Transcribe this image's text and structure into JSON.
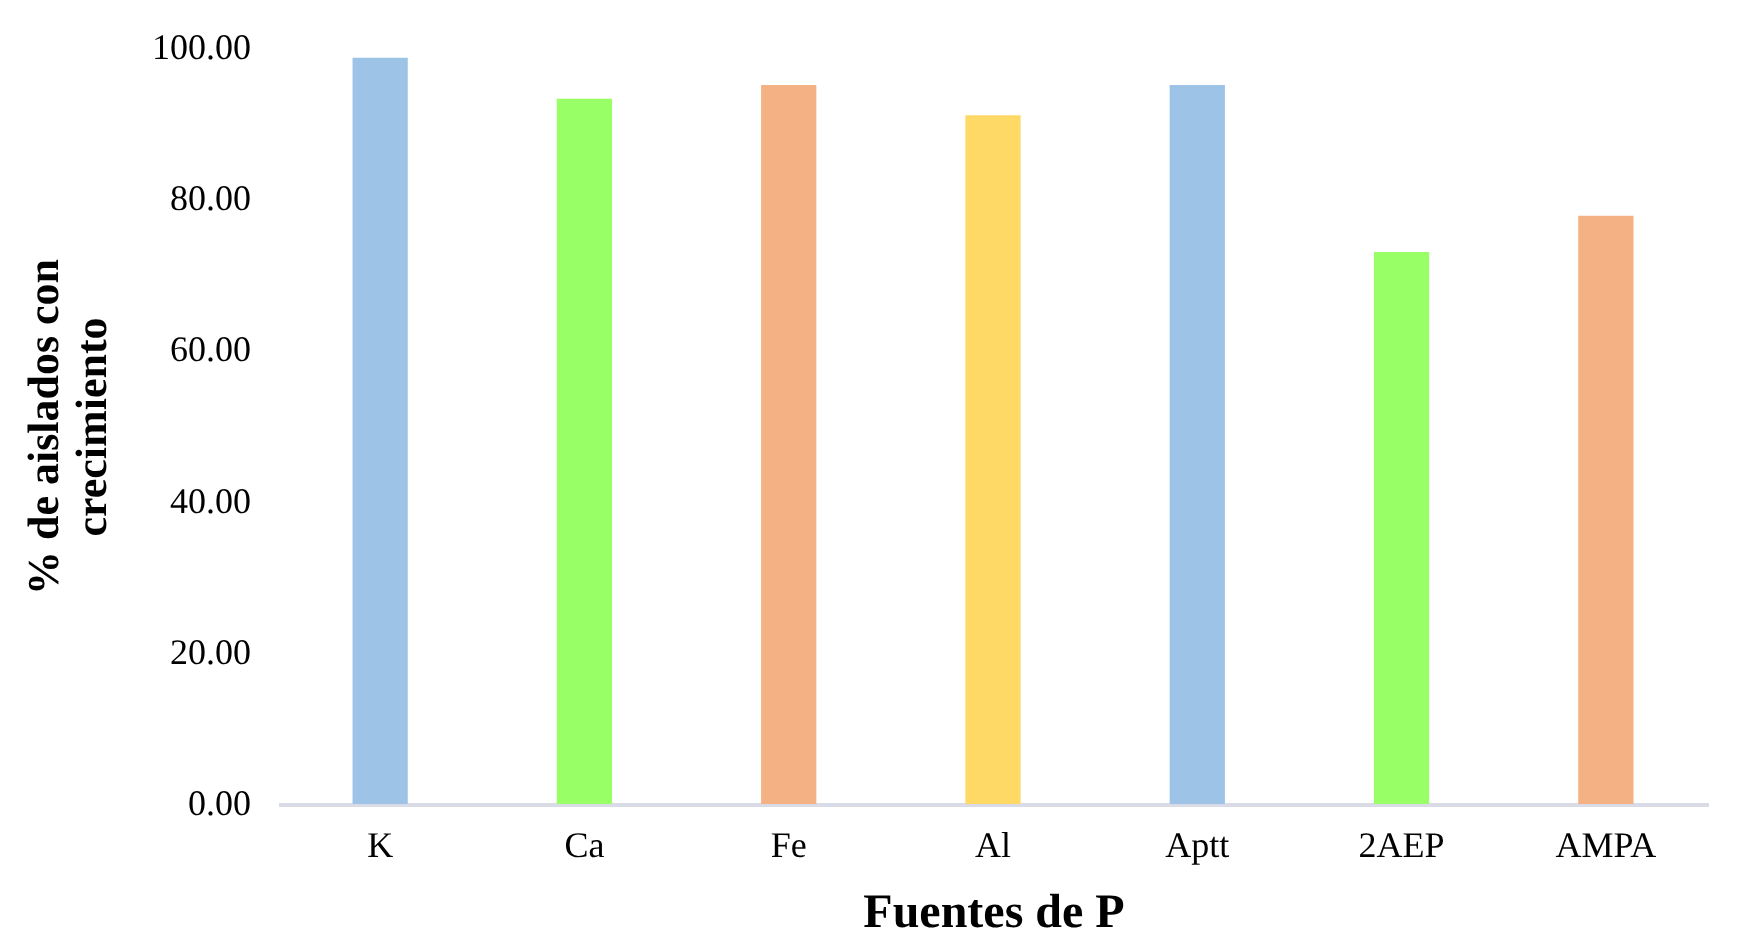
{
  "chart_data": {
    "type": "bar",
    "xlabel": "Fuentes de P",
    "ylabel": "%  de aislados con crecimiento",
    "categories": [
      "K",
      "Ca",
      "Fe",
      "Al",
      "Aptt",
      "2AEP",
      "AMPA"
    ],
    "values": [
      98.7,
      93.3,
      95.1,
      91.1,
      95.1,
      73.0,
      77.8
    ],
    "colors": [
      "#9dc3e6",
      "#99ff66",
      "#f4b183",
      "#ffd966",
      "#9dc3e6",
      "#99ff66",
      "#f4b183"
    ],
    "ylim": [
      0,
      100
    ],
    "yticks": [
      {
        "value": 0,
        "label": "0.00"
      },
      {
        "value": 20,
        "label": "20.00"
      },
      {
        "value": 40,
        "label": "40.00"
      },
      {
        "value": 60,
        "label": "60.00"
      },
      {
        "value": 80,
        "label": "80.00"
      },
      {
        "value": 100,
        "label": "100.00"
      }
    ],
    "grid": false,
    "legend": false
  }
}
